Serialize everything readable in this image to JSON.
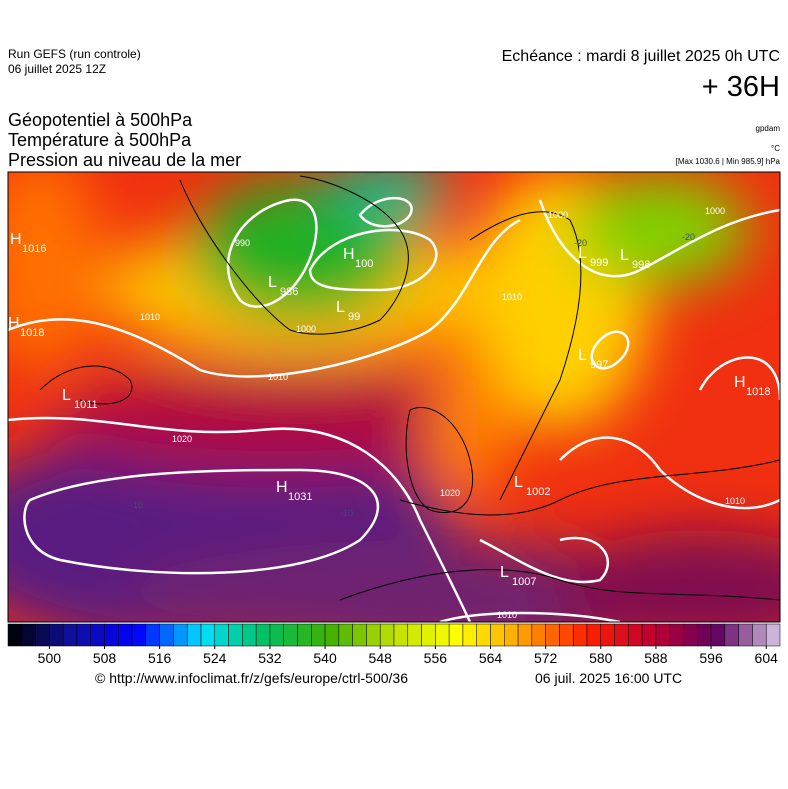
{
  "header": {
    "run": "Run GEFS (run controle)",
    "date": "06 juillet 2025 12Z",
    "echeance": "Echéance : mardi 8 juillet 2025 0h UTC",
    "lead": "+ 36H",
    "titles": [
      "Géopotentiel à 500hPa",
      "Température à 500hPa",
      "Pression au niveau de la mer"
    ],
    "units": [
      "gpdam",
      "°C"
    ],
    "extremes": "[Max 1030.6 | Min 985.9] hPa"
  },
  "map": {
    "centers": [
      {
        "type": "H",
        "value": "1016"
      },
      {
        "type": "L",
        "value": "986"
      },
      {
        "type": "H",
        "value": "100"
      },
      {
        "type": "L",
        "value": "999"
      },
      {
        "type": "L",
        "value": "998"
      },
      {
        "type": "H",
        "value": "1018"
      },
      {
        "type": "L",
        "value": "99"
      },
      {
        "type": "L",
        "value": "1011"
      },
      {
        "type": "L",
        "value": "997"
      },
      {
        "type": "H",
        "value": "1018"
      },
      {
        "type": "H",
        "value": "1031"
      },
      {
        "type": "L",
        "value": "1002"
      },
      {
        "type": "L",
        "value": "1007"
      }
    ],
    "isobar_labels": [
      "990",
      "1010",
      "1000",
      "1010",
      "1020",
      "1020",
      "1010",
      "1000",
      "1000",
      "1010",
      "1010",
      "-20",
      "-20",
      "-10",
      "-10"
    ]
  },
  "colorbar": {
    "range": [
      494,
      606
    ],
    "step": 2,
    "ticks": [
      500,
      508,
      516,
      524,
      532,
      540,
      548,
      556,
      564,
      572,
      580,
      588,
      596,
      604
    ],
    "stops": [
      "#000000",
      "#1010a0",
      "#0000ff",
      "#00e0ff",
      "#00c060",
      "#40b000",
      "#c0e000",
      "#ffff00",
      "#ffa000",
      "#ff2000",
      "#c00030",
      "#600060",
      "#d8c8e8"
    ]
  },
  "footer": {
    "url": "© http://www.infoclimat.fr/z/gefs/europe/ctrl-500/36",
    "time": "06 juil. 2025 16:00 UTC"
  }
}
